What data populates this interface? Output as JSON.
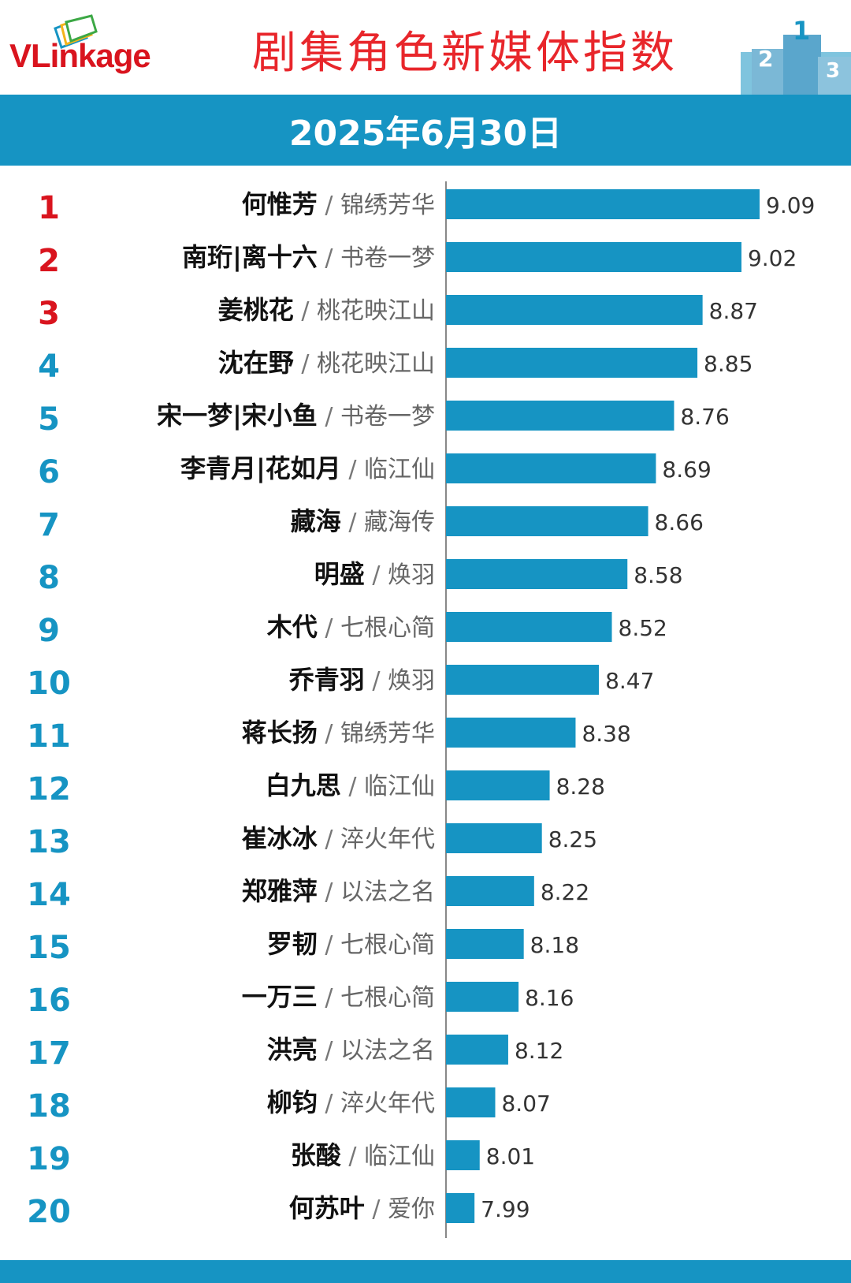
{
  "brand": {
    "logo_text": "VLinkage",
    "logo_icon": "stacked-cards-logo-icon",
    "podium_icon": "podium-icon"
  },
  "header": {
    "title": "剧集角色新媒体指数",
    "date": "2025年6月30日"
  },
  "colors": {
    "bar": "#1694c3",
    "rank_top3": "#d9141e",
    "rank_other": "#1694c3",
    "title_red": "#e8262b",
    "band": "#1694c3"
  },
  "chart_data": {
    "type": "bar",
    "orientation": "horizontal",
    "categories": [
      {
        "rank": "1",
        "role": "何惟芳",
        "drama": "锦绣芳华"
      },
      {
        "rank": "2",
        "role": "南珩|离十六",
        "drama": "书卷一梦"
      },
      {
        "rank": "3",
        "role": "姜桃花",
        "drama": "桃花映江山"
      },
      {
        "rank": "4",
        "role": "沈在野",
        "drama": "桃花映江山"
      },
      {
        "rank": "5",
        "role": "宋一梦|宋小鱼",
        "drama": "书卷一梦"
      },
      {
        "rank": "6",
        "role": "李青月|花如月",
        "drama": "临江仙"
      },
      {
        "rank": "7",
        "role": "藏海",
        "drama": "藏海传"
      },
      {
        "rank": "8",
        "role": "明盛",
        "drama": "焕羽"
      },
      {
        "rank": "9",
        "role": "木代",
        "drama": "七根心简"
      },
      {
        "rank": "10",
        "role": "乔青羽",
        "drama": "焕羽"
      },
      {
        "rank": "11",
        "role": "蒋长扬",
        "drama": "锦绣芳华"
      },
      {
        "rank": "12",
        "role": "白九思",
        "drama": "临江仙"
      },
      {
        "rank": "13",
        "role": "崔冰冰",
        "drama": "淬火年代"
      },
      {
        "rank": "14",
        "role": "郑雅萍",
        "drama": "以法之名"
      },
      {
        "rank": "15",
        "role": "罗韧",
        "drama": "七根心简"
      },
      {
        "rank": "16",
        "role": "一万三",
        "drama": "七根心简"
      },
      {
        "rank": "17",
        "role": "洪亮",
        "drama": "以法之名"
      },
      {
        "rank": "18",
        "role": "柳钧",
        "drama": "淬火年代"
      },
      {
        "rank": "19",
        "role": "张酸",
        "drama": "临江仙"
      },
      {
        "rank": "20",
        "role": "何苏叶",
        "drama": "爱你"
      }
    ],
    "values": [
      9.09,
      9.02,
      8.87,
      8.85,
      8.76,
      8.69,
      8.66,
      8.58,
      8.52,
      8.47,
      8.38,
      8.28,
      8.25,
      8.22,
      8.18,
      8.16,
      8.12,
      8.07,
      8.01,
      7.99
    ],
    "value_labels": [
      "9.09",
      "9.02",
      "8.87",
      "8.85",
      "8.76",
      "8.69",
      "8.66",
      "8.58",
      "8.52",
      "8.47",
      "8.38",
      "8.28",
      "8.25",
      "8.22",
      "8.18",
      "8.16",
      "8.12",
      "8.07",
      "8.01",
      "7.99"
    ],
    "xlim": [
      7.88,
      9.09
    ],
    "separator": "/",
    "grid": false,
    "legend": "none"
  }
}
